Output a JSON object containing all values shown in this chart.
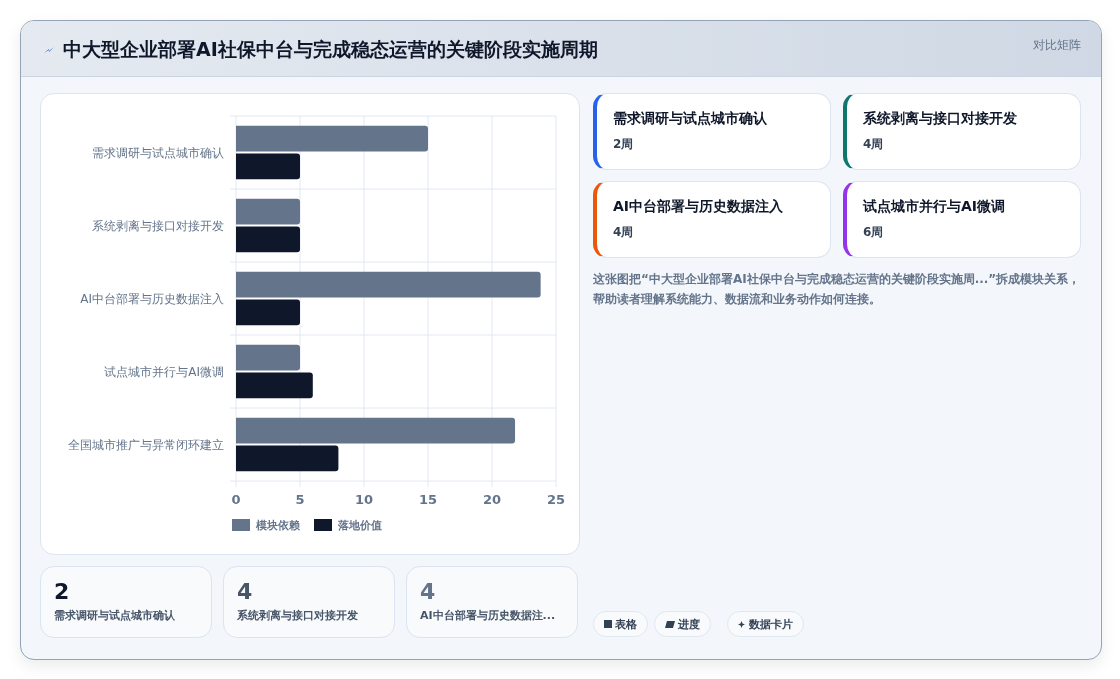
{
  "chart_data": {
    "type": "bar",
    "orientation": "horizontal",
    "title": "中大型企业部署AI社保中台与完成稳态运营的关键阶段实施周期",
    "categories": [
      "需求调研与试点城市确认",
      "系统剥离与接口对接开发",
      "AI中台部署与历史数据注入",
      "试点城市并行与AI微调",
      "全国城市推广与异常闭环建立"
    ],
    "series": [
      {
        "name": "模块依赖",
        "color": "#64748b",
        "values": [
          15,
          5,
          23.8,
          5,
          21.8
        ]
      },
      {
        "name": "落地价值",
        "color": "#0f172a",
        "values": [
          5,
          5,
          5,
          6,
          8
        ]
      }
    ],
    "xlim": [
      0,
      25
    ],
    "xticks": [
      0,
      5,
      10,
      15,
      20,
      25
    ],
    "grid": true,
    "legend": "bottom",
    "annotations": [
      "对比矩阵",
      "需求调研与试点城市确认",
      "2周",
      "系统剥离与接口对接开发",
      "4周",
      "AI中台部署与历史数据注入",
      "4周",
      "试点城市并行与AI微调",
      "6周",
      "这张图把“中大型企业部署AI社保中台与完成稳态运营的关键阶段实施周...”拆成模块关系，帮助读者理解系统能力、数据流和业务动作如何连接。",
      "2",
      "需求调研与试点城市确认",
      "4",
      "系统剥离与接口对接开发",
      "4",
      "AI中台部署与历史数据注...",
      "表格",
      "进度",
      "数据卡片"
    ]
  }
}
